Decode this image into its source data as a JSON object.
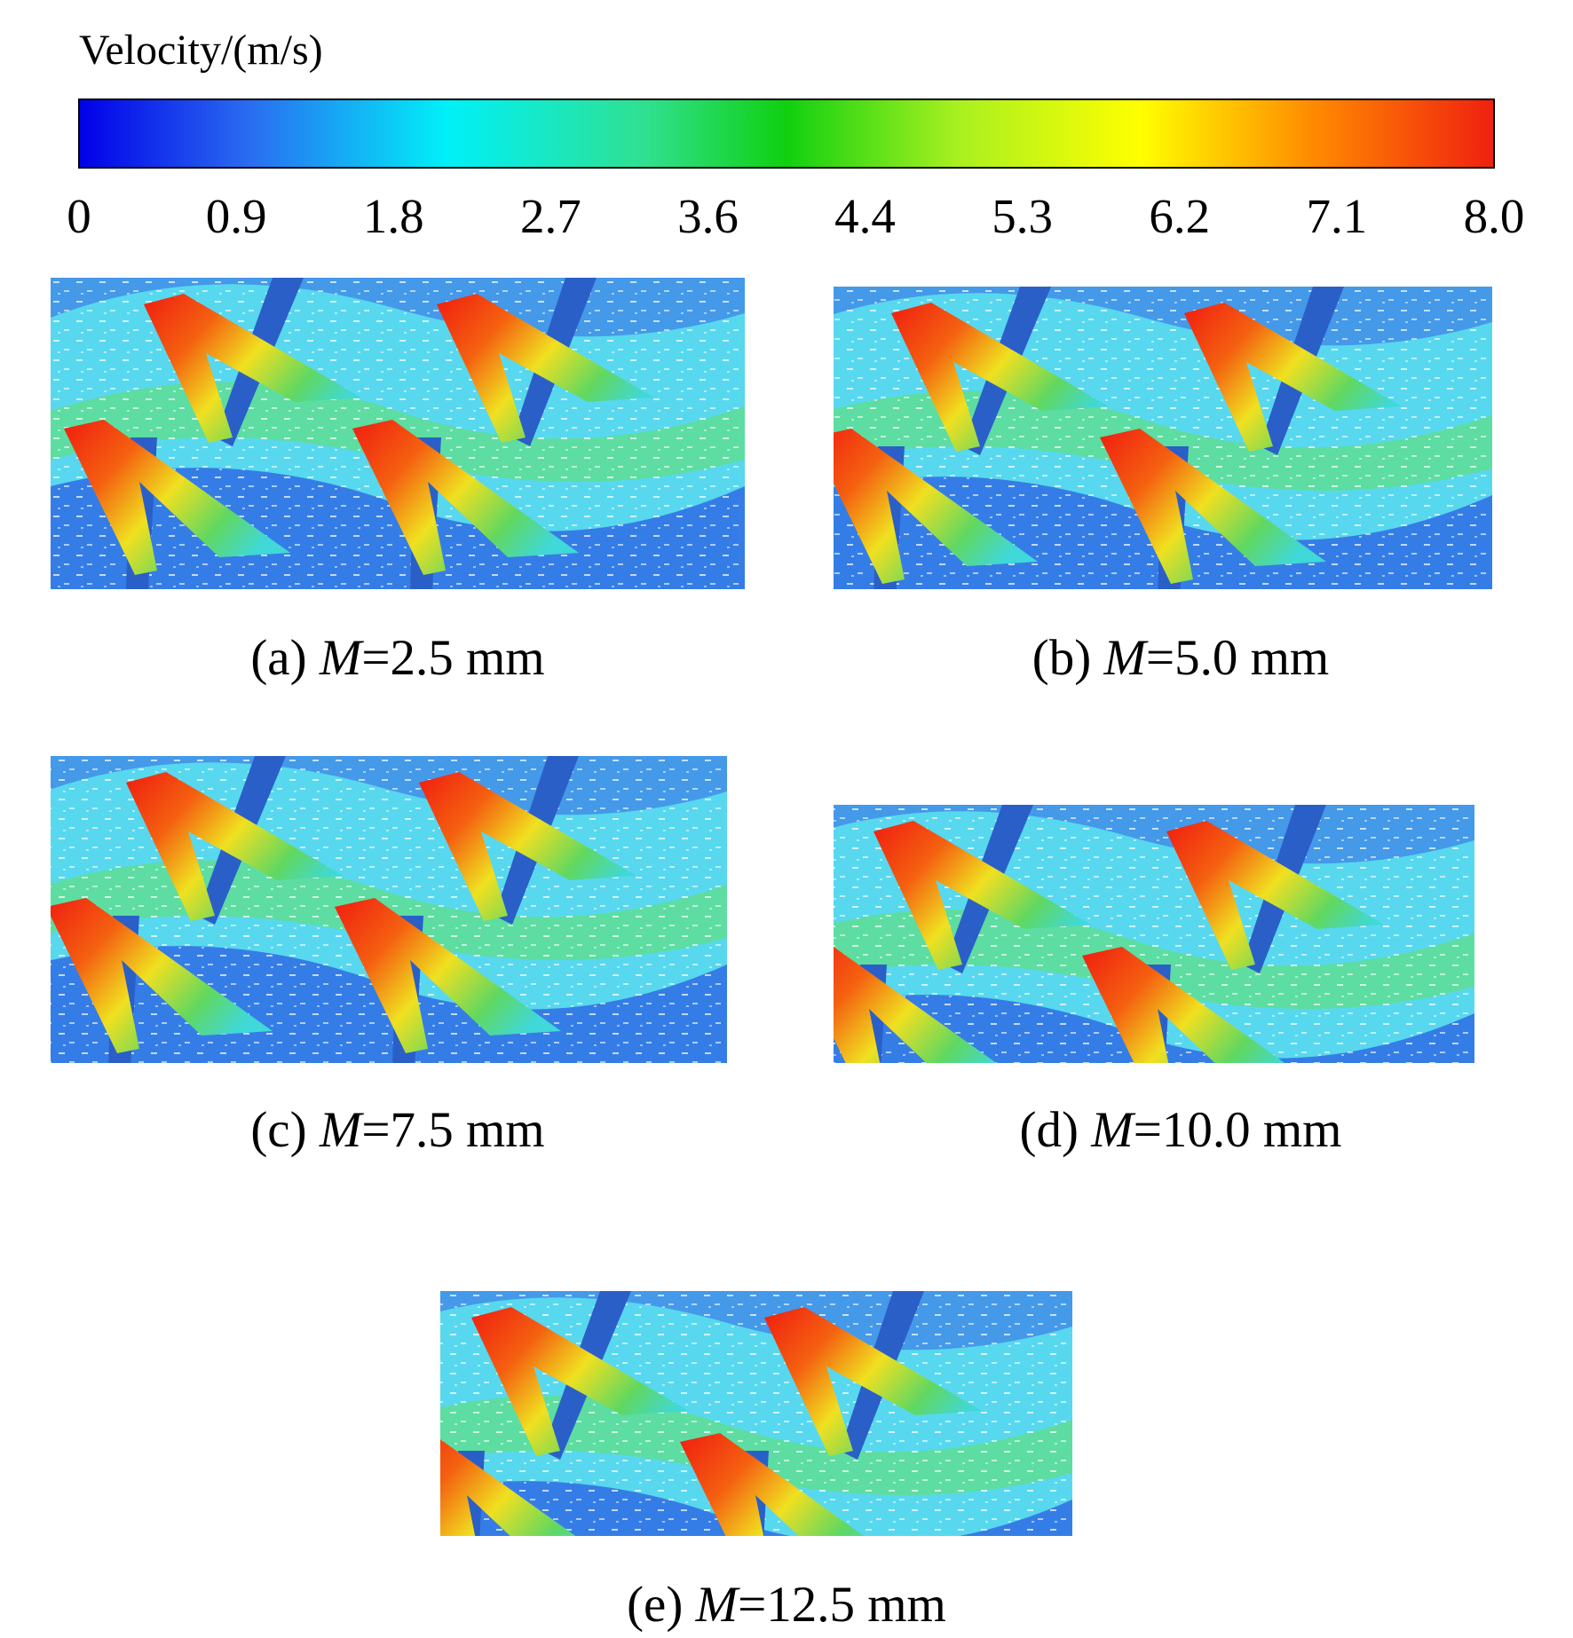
{
  "colorbar": {
    "title": "Velocity/(m/s)",
    "ticks": [
      "0",
      "0.9",
      "1.8",
      "2.7",
      "3.6",
      "4.4",
      "5.3",
      "6.2",
      "7.1",
      "8.0"
    ]
  },
  "panels": [
    {
      "tag": "(a)",
      "symbol": "M",
      "text": "=2.5 mm"
    },
    {
      "tag": "(b)",
      "symbol": "M",
      "text": "=5.0 mm"
    },
    {
      "tag": "(c)",
      "symbol": "M",
      "text": "=7.5 mm"
    },
    {
      "tag": "(d)",
      "symbol": "M",
      "text": "=10.0 mm"
    },
    {
      "tag": "(e)",
      "symbol": "M",
      "text": "=12.5 mm"
    }
  ]
}
